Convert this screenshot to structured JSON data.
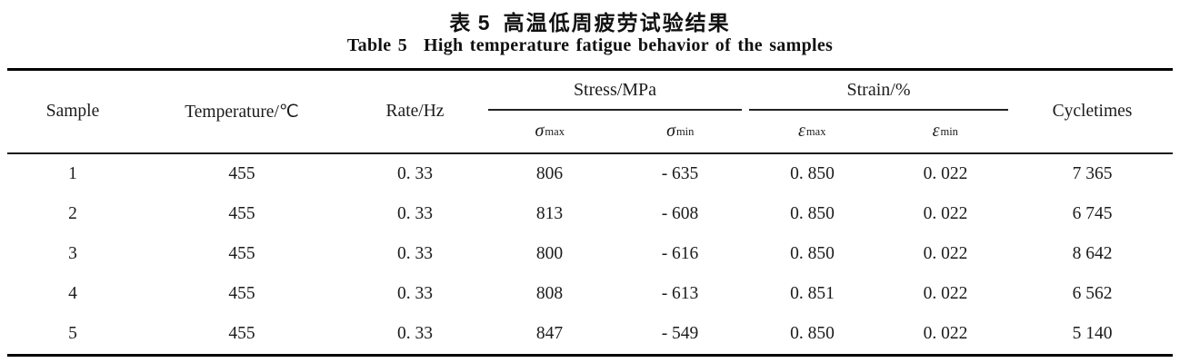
{
  "titles": {
    "zh_label": "表 5",
    "zh_text": "高温低周疲劳试验结果",
    "en_label": "Table 5",
    "en_text": "High temperature fatigue behavior of the samples"
  },
  "table": {
    "columns": {
      "sample": "Sample",
      "temperature": "Temperature/℃",
      "rate": "Rate/Hz",
      "cycletimes": "Cycletimes"
    },
    "groups": [
      {
        "label": "Stress/MPa",
        "sub": [
          {
            "symbol": "σ",
            "subscript": "max"
          },
          {
            "symbol": "σ",
            "subscript": "min"
          }
        ]
      },
      {
        "label": "Strain/%",
        "sub": [
          {
            "symbol": "ε",
            "subscript": "max"
          },
          {
            "symbol": "ε",
            "subscript": "min"
          }
        ]
      }
    ],
    "rows": [
      [
        "1",
        "455",
        "0. 33",
        "806",
        "- 635",
        "0. 850",
        "0. 022",
        "7 365"
      ],
      [
        "2",
        "455",
        "0. 33",
        "813",
        "- 608",
        "0. 850",
        "0. 022",
        "6 745"
      ],
      [
        "3",
        "455",
        "0. 33",
        "800",
        "- 616",
        "0. 850",
        "0. 022",
        "8 642"
      ],
      [
        "4",
        "455",
        "0. 33",
        "808",
        "- 613",
        "0. 851",
        "0. 022",
        "6 562"
      ],
      [
        "5",
        "455",
        "0. 33",
        "847",
        "- 549",
        "0. 850",
        "0. 022",
        "5 140"
      ]
    ]
  }
}
